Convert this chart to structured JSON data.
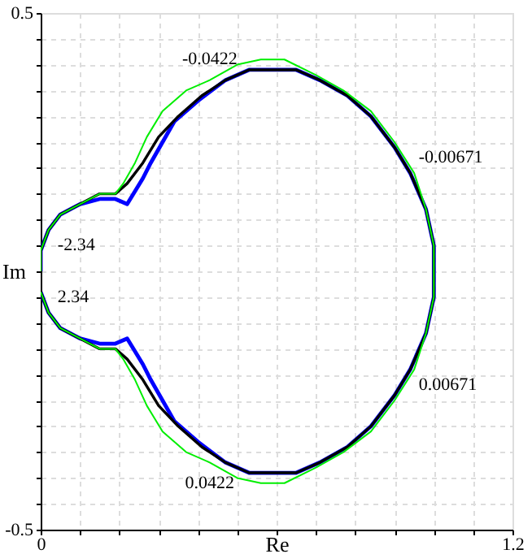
{
  "chart_data": {
    "type": "line",
    "xlabel": "Re",
    "ylabel": "Im",
    "xlim": [
      0,
      1.2
    ],
    "ylim": [
      -0.5,
      0.5
    ],
    "xticks": [
      0,
      {
        "value": 0.1,
        "label": null
      },
      {
        "value": 0.2,
        "label": null
      },
      {
        "value": 0.3,
        "label": null
      },
      {
        "value": 0.4,
        "label": null
      },
      {
        "value": 0.5,
        "label": null
      },
      {
        "value": 0.6,
        "label": null
      },
      {
        "value": 0.7,
        "label": null
      },
      {
        "value": 0.8,
        "label": null
      },
      {
        "value": 0.9,
        "label": null
      },
      {
        "value": 1.0,
        "label": null
      },
      {
        "value": 1.1,
        "label": null
      },
      1.2
    ],
    "yticks": [
      -0.5,
      {
        "value": -0.45,
        "label": null
      },
      {
        "value": -0.4,
        "label": null
      },
      {
        "value": -0.35,
        "label": null
      },
      {
        "value": -0.3,
        "label": null
      },
      {
        "value": -0.25,
        "label": null
      },
      {
        "value": -0.2,
        "label": null
      },
      {
        "value": -0.15,
        "label": null
      },
      {
        "value": -0.1,
        "label": null
      },
      {
        "value": -0.05,
        "label": null
      },
      {
        "value": 0,
        "label": null
      },
      {
        "value": 0.05,
        "label": null
      },
      {
        "value": 0.1,
        "label": null
      },
      {
        "value": 0.15,
        "label": null
      },
      {
        "value": 0.2,
        "label": null
      },
      {
        "value": 0.25,
        "label": null
      },
      {
        "value": 0.3,
        "label": null
      },
      {
        "value": 0.35,
        "label": null
      },
      {
        "value": 0.4,
        "label": null
      },
      {
        "value": 0.45,
        "label": null
      },
      0.5
    ],
    "grid": true,
    "line_style": "solid",
    "series": [
      {
        "color": "#00ee00",
        "x": [
          0,
          0,
          0.02,
          0.05,
          0.1,
          0.15,
          0.19,
          0.21,
          0.24,
          0.27,
          0.31,
          0.37,
          0.43,
          0.5,
          0.56,
          0.62,
          0.7,
          0.77,
          0.84,
          0.9,
          0.95,
          0.98,
          1.0,
          1.0,
          1.0,
          0.98,
          0.95,
          0.9,
          0.84,
          0.77,
          0.7,
          0.62,
          0.56,
          0.5,
          0.43,
          0.37,
          0.31,
          0.27,
          0.24,
          0.21,
          0.19,
          0.15,
          0.1,
          0.05,
          0.02,
          0
        ],
        "values": [
          0,
          0.04,
          0.08,
          0.11,
          0.13,
          0.15,
          0.15,
          0.17,
          0.21,
          0.26,
          0.31,
          0.35,
          0.37,
          0.4,
          0.41,
          0.41,
          0.38,
          0.35,
          0.31,
          0.25,
          0.19,
          0.12,
          0.05,
          0,
          -0.05,
          -0.12,
          -0.19,
          -0.25,
          -0.31,
          -0.35,
          -0.38,
          -0.41,
          -0.41,
          -0.4,
          -0.37,
          -0.35,
          -0.31,
          -0.26,
          -0.21,
          -0.17,
          -0.15,
          -0.15,
          -0.13,
          -0.11,
          -0.08,
          -0.04
        ]
      },
      {
        "color": "#000000",
        "x": [
          0,
          0,
          0.02,
          0.05,
          0.1,
          0.15,
          0.19,
          0.22,
          0.26,
          0.3,
          0.35,
          0.41,
          0.47,
          0.53,
          0.59,
          0.65,
          0.71,
          0.78,
          0.84,
          0.9,
          0.94,
          0.98,
          1.0,
          1.0,
          1.0,
          0.98,
          0.94,
          0.9,
          0.84,
          0.78,
          0.71,
          0.65,
          0.59,
          0.53,
          0.47,
          0.41,
          0.35,
          0.3,
          0.26,
          0.22,
          0.19,
          0.15,
          0.1,
          0.05,
          0.02,
          0
        ],
        "values": [
          0,
          0.04,
          0.08,
          0.11,
          0.13,
          0.15,
          0.15,
          0.17,
          0.21,
          0.26,
          0.3,
          0.34,
          0.37,
          0.39,
          0.39,
          0.39,
          0.37,
          0.34,
          0.3,
          0.24,
          0.19,
          0.12,
          0.05,
          0,
          -0.05,
          -0.12,
          -0.19,
          -0.24,
          -0.3,
          -0.34,
          -0.37,
          -0.39,
          -0.39,
          -0.39,
          -0.37,
          -0.34,
          -0.3,
          -0.26,
          -0.21,
          -0.17,
          -0.15,
          -0.15,
          -0.13,
          -0.11,
          -0.08,
          -0.04
        ]
      },
      {
        "color": "#0000ff",
        "x": [
          0,
          0,
          0.02,
          0.05,
          0.1,
          0.15,
          0.19,
          0.22,
          0.26,
          0.28,
          0.31,
          0.34,
          0.4,
          0.47,
          0.53,
          0.59,
          0.65,
          0.71,
          0.78,
          0.84,
          0.9,
          0.94,
          0.98,
          1.0,
          1.0,
          1.0,
          0.98,
          0.94,
          0.9,
          0.84,
          0.78,
          0.71,
          0.65,
          0.59,
          0.53,
          0.47,
          0.4,
          0.34,
          0.31,
          0.28,
          0.26,
          0.22,
          0.19,
          0.15,
          0.1,
          0.05,
          0.02,
          0
        ],
        "values": [
          0,
          0.04,
          0.08,
          0.11,
          0.13,
          0.14,
          0.14,
          0.13,
          0.18,
          0.21,
          0.25,
          0.29,
          0.33,
          0.37,
          0.39,
          0.39,
          0.39,
          0.37,
          0.34,
          0.3,
          0.24,
          0.19,
          0.12,
          0.05,
          0,
          -0.05,
          -0.12,
          -0.19,
          -0.24,
          -0.3,
          -0.34,
          -0.37,
          -0.39,
          -0.39,
          -0.39,
          -0.37,
          -0.33,
          -0.29,
          -0.25,
          -0.21,
          -0.18,
          -0.13,
          -0.14,
          -0.14,
          -0.13,
          -0.11,
          -0.08,
          -0.04
        ]
      }
    ],
    "annotations": [
      {
        "text": "-2.34",
        "x": 0.01,
        "y": 0.05
      },
      {
        "text": "-0.0422",
        "x": 0.43,
        "y": 0.37
      },
      {
        "text": "-0.00671",
        "x": 0.92,
        "y": 0.22
      },
      {
        "text": "0.00671",
        "x": 0.92,
        "y": -0.22
      },
      {
        "text": "0.0422",
        "x": 0.43,
        "y": -0.37
      },
      {
        "text": "2.34",
        "x": 0.01,
        "y": -0.05
      }
    ]
  }
}
